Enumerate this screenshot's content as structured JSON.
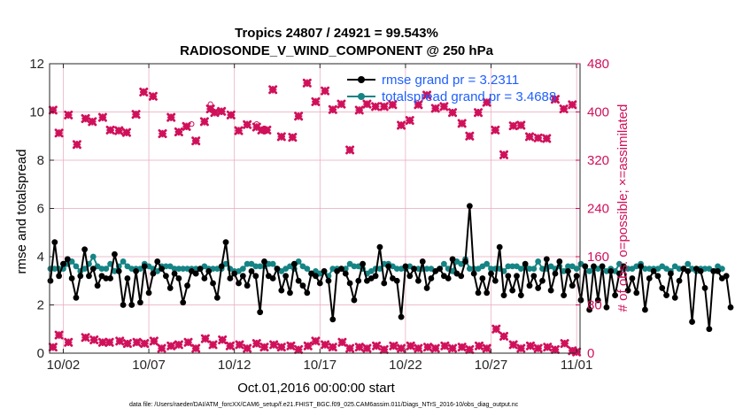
{
  "chart_data": {
    "type": "line",
    "title": "Tropics 24807 / 24921 = 99.543%",
    "subtitle": "RADIOSONDE_V_WIND_COMPONENT @ 250 hPa",
    "xlabel": "Oct.01,2016 00:00:00 start",
    "ylabel": "rmse and totalspread",
    "y2label": "# of obs: o=possible; ×=assimilated",
    "footer": "data file: /Users/raeder/DAI/ATM_forcXX/CAM6_setup/f.e21.FHIST_BGC.f09_025.CAM6assim.011/Diags_NTrS_2016-10/obs_diag_output.nc",
    "xlim": [
      0.2,
      31.2
    ],
    "ylim": [
      0,
      12
    ],
    "y2lim": [
      0,
      480
    ],
    "x_ticks": [
      {
        "v": 1,
        "label": "10/02"
      },
      {
        "v": 6,
        "label": "10/07"
      },
      {
        "v": 11,
        "label": "10/12"
      },
      {
        "v": 16,
        "label": "10/17"
      },
      {
        "v": 21,
        "label": "10/22"
      },
      {
        "v": 26,
        "label": "10/27"
      },
      {
        "v": 31,
        "label": "11/01"
      }
    ],
    "y_ticks": [
      0,
      2,
      4,
      6,
      8,
      10,
      12
    ],
    "y2_ticks": [
      0,
      80,
      160,
      240,
      320,
      400,
      480
    ],
    "legend": [
      {
        "label": "rmse grand pr = 3.2311",
        "color": "#000000"
      },
      {
        "label": "totalspread grand pr = 3.4688",
        "color": "#158484"
      }
    ],
    "colors": {
      "rmse": "#000000",
      "spread": "#158484",
      "obs": "#d0105a",
      "grid": "#e6a8bc",
      "legend_text": "#1f5fff"
    },
    "time_step": 0.25,
    "series": [
      {
        "name": "rmse",
        "axis": "left",
        "x0": 0.25,
        "values": [
          3.0,
          4.6,
          3.2,
          3.7,
          3.9,
          3.1,
          2.3,
          3.2,
          4.3,
          3.2,
          3.5,
          2.8,
          3.2,
          3.1,
          3.1,
          4.1,
          3.4,
          2.0,
          3.1,
          2.0,
          3.4,
          2.1,
          3.6,
          2.5,
          3.3,
          3.8,
          3.5,
          3.2,
          2.7,
          3.3,
          3.1,
          2.1,
          2.8,
          3.4,
          3.3,
          3.5,
          3.1,
          3.4,
          2.9,
          2.3,
          3.6,
          4.6,
          3.1,
          3.3,
          2.9,
          3.2,
          2.8,
          3.4,
          3.2,
          1.7,
          3.8,
          3.2,
          3.1,
          3.5,
          2.6,
          3.2,
          2.5,
          3.7,
          3.0,
          2.8,
          2.5,
          3.3,
          3.2,
          2.9,
          3.4,
          3.0,
          1.4,
          3.4,
          3.5,
          3.3,
          2.9,
          2.2,
          3.0,
          3.7,
          3.0,
          3.1,
          3.2,
          4.4,
          2.9,
          3.6,
          3.1,
          3.0,
          1.5,
          3.6,
          3.2,
          3.5,
          3.0,
          3.8,
          2.7,
          3.1,
          3.4,
          3.5,
          3.2,
          3.1,
          3.9,
          3.3,
          3.2,
          3.8,
          6.1,
          3.3,
          2.5,
          3.1,
          2.5,
          3.3,
          3.0,
          4.4,
          2.4,
          3.2,
          2.6,
          3.2,
          2.4,
          3.7,
          2.8,
          3.2,
          2.7,
          3.0,
          3.9,
          2.6,
          3.3,
          3.8,
          2.4,
          3.4,
          2.8,
          3.2,
          2.2,
          3.6,
          1.8,
          3.6,
          2.2,
          3.6,
          1.9,
          3.4,
          2.4,
          3.3,
          3.6,
          2.6,
          3.1,
          2.5,
          3.6,
          1.8,
          3.1,
          3.4,
          3.2,
          2.7,
          2.4,
          3.3,
          2.3,
          3.0,
          3.5,
          3.4,
          1.3,
          3.5,
          3.4,
          2.7,
          1.0,
          3.4,
          3.4,
          3.1,
          3.2,
          1.9
        ]
      },
      {
        "name": "totalspread",
        "axis": "left",
        "x0": 0.25,
        "values": [
          3.5,
          3.5,
          3.5,
          3.5,
          3.7,
          3.8,
          3.6,
          3.4,
          3.5,
          3.7,
          4.0,
          3.6,
          3.5,
          3.5,
          3.7,
          3.4,
          3.6,
          3.8,
          3.6,
          3.5,
          3.5,
          3.5,
          3.7,
          3.6,
          3.5,
          3.4,
          3.6,
          3.6,
          3.6,
          3.5,
          3.5,
          3.5,
          3.5,
          3.5,
          3.5,
          3.5,
          3.6,
          3.5,
          3.5,
          3.5,
          3.5,
          3.7,
          3.5,
          3.4,
          3.4,
          3.5,
          3.7,
          3.7,
          3.6,
          3.6,
          3.6,
          3.7,
          3.7,
          3.5,
          3.4,
          3.5,
          3.6,
          3.5,
          3.8,
          3.6,
          3.5,
          3.3,
          3.4,
          3.3,
          3.4,
          3.2,
          3.5,
          3.5,
          3.5,
          3.5,
          3.7,
          3.6,
          3.6,
          3.5,
          3.3,
          3.4,
          3.5,
          3.5,
          3.7,
          3.7,
          3.6,
          3.5,
          3.5,
          3.5,
          3.6,
          3.5,
          3.5,
          3.5,
          3.5,
          3.5,
          3.4,
          3.5,
          3.7,
          3.5,
          3.4,
          3.8,
          3.7,
          3.9,
          3.5,
          3.5,
          3.5,
          3.6,
          3.7,
          3.5,
          3.5,
          3.5,
          3.4,
          3.6,
          3.6,
          3.6,
          3.5,
          3.6,
          3.5,
          3.5,
          3.8,
          3.5,
          3.5,
          3.6,
          3.5,
          3.6,
          3.4,
          3.6,
          3.6,
          3.5,
          3.7,
          3.6,
          3.4,
          3.5,
          3.5,
          3.6,
          3.4,
          3.5,
          3.4,
          3.7,
          3.5,
          3.5,
          3.5,
          3.6,
          3.7,
          3.5,
          3.5,
          3.5,
          3.5,
          3.6,
          3.5,
          3.4,
          3.6,
          3.5,
          3.5,
          3.7,
          3.5,
          3.4,
          3.5,
          3.5,
          3.5,
          3.4,
          3.6,
          3.5
        ]
      },
      {
        "name": "obs possible (o)",
        "axis": "right",
        "marker": "o",
        "points": [
          [
            0.4,
            403
          ],
          [
            0.75,
            365
          ],
          [
            1.3,
            395
          ],
          [
            1.8,
            346
          ],
          [
            2.3,
            389
          ],
          [
            2.7,
            384
          ],
          [
            3.3,
            391
          ],
          [
            3.75,
            370
          ],
          [
            4.25,
            369
          ],
          [
            4.7,
            366
          ],
          [
            5.25,
            396
          ],
          [
            5.7,
            433
          ],
          [
            6.25,
            426
          ],
          [
            6.8,
            364
          ],
          [
            7.3,
            391
          ],
          [
            7.75,
            367
          ],
          [
            8.2,
            376
          ],
          [
            8.5,
            380
          ],
          [
            8.75,
            352
          ],
          [
            9.25,
            384
          ],
          [
            9.6,
            413
          ],
          [
            9.85,
            399
          ],
          [
            10.25,
            401
          ],
          [
            10.8,
            395
          ],
          [
            11.25,
            369
          ],
          [
            11.75,
            379
          ],
          [
            12.3,
            380
          ],
          [
            12.6,
            370
          ],
          [
            12.9,
            370
          ],
          [
            13.25,
            437
          ],
          [
            13.75,
            359
          ],
          [
            14.4,
            358
          ],
          [
            14.75,
            393
          ],
          [
            15.25,
            448
          ],
          [
            15.75,
            417
          ],
          [
            16.3,
            435
          ],
          [
            16.75,
            404
          ],
          [
            17.25,
            413
          ],
          [
            17.75,
            337
          ],
          [
            18.3,
            403
          ],
          [
            18.75,
            413
          ],
          [
            19.25,
            409
          ],
          [
            19.75,
            409
          ],
          [
            20.25,
            412
          ],
          [
            20.75,
            378
          ],
          [
            21.25,
            386
          ],
          [
            21.75,
            412
          ],
          [
            22.25,
            428
          ],
          [
            22.75,
            406
          ],
          [
            23.25,
            409
          ],
          [
            23.75,
            399
          ],
          [
            24.3,
            381
          ],
          [
            24.75,
            360
          ],
          [
            25.25,
            399
          ],
          [
            25.75,
            416
          ],
          [
            26.25,
            370
          ],
          [
            26.75,
            329
          ],
          [
            27.3,
            377
          ],
          [
            27.75,
            378
          ],
          [
            28.25,
            359
          ],
          [
            28.75,
            357
          ],
          [
            29.25,
            356
          ],
          [
            29.75,
            421
          ],
          [
            30.25,
            405
          ],
          [
            30.75,
            412
          ]
        ]
      },
      {
        "name": "obs assimilated (x)",
        "axis": "right",
        "marker": "x",
        "points": [
          [
            0.4,
            403
          ],
          [
            0.75,
            365
          ],
          [
            1.3,
            395
          ],
          [
            1.8,
            346
          ],
          [
            2.3,
            389
          ],
          [
            2.7,
            384
          ],
          [
            3.3,
            391
          ],
          [
            3.75,
            370
          ],
          [
            4.25,
            369
          ],
          [
            4.7,
            366
          ],
          [
            5.25,
            396
          ],
          [
            5.7,
            433
          ],
          [
            6.25,
            426
          ],
          [
            6.8,
            364
          ],
          [
            7.3,
            391
          ],
          [
            7.75,
            367
          ],
          [
            8.2,
            376
          ],
          [
            8.75,
            352
          ],
          [
            9.25,
            384
          ],
          [
            9.6,
            405
          ],
          [
            9.85,
            399
          ],
          [
            10.25,
            401
          ],
          [
            10.8,
            395
          ],
          [
            11.25,
            369
          ],
          [
            11.75,
            379
          ],
          [
            12.3,
            375
          ],
          [
            12.6,
            370
          ],
          [
            12.9,
            370
          ],
          [
            13.25,
            437
          ],
          [
            13.75,
            359
          ],
          [
            14.4,
            358
          ],
          [
            14.75,
            393
          ],
          [
            15.25,
            448
          ],
          [
            15.75,
            417
          ],
          [
            16.3,
            435
          ],
          [
            16.75,
            404
          ],
          [
            17.25,
            413
          ],
          [
            17.75,
            337
          ],
          [
            18.3,
            403
          ],
          [
            18.75,
            413
          ],
          [
            19.25,
            409
          ],
          [
            19.75,
            409
          ],
          [
            20.25,
            412
          ],
          [
            20.75,
            378
          ],
          [
            21.25,
            386
          ],
          [
            21.75,
            412
          ],
          [
            22.25,
            428
          ],
          [
            22.75,
            406
          ],
          [
            23.25,
            409
          ],
          [
            23.75,
            399
          ],
          [
            24.3,
            381
          ],
          [
            24.75,
            360
          ],
          [
            25.25,
            399
          ],
          [
            25.75,
            416
          ],
          [
            26.25,
            370
          ],
          [
            26.75,
            329
          ],
          [
            27.3,
            377
          ],
          [
            27.75,
            378
          ],
          [
            28.25,
            359
          ],
          [
            28.75,
            357
          ],
          [
            29.25,
            356
          ],
          [
            29.75,
            421
          ],
          [
            30.25,
            405
          ],
          [
            30.75,
            412
          ],
          [
            0.4,
            10
          ],
          [
            0.75,
            30
          ],
          [
            1.3,
            18
          ],
          [
            2.3,
            26
          ],
          [
            2.8,
            22
          ],
          [
            3.3,
            18
          ],
          [
            3.7,
            18
          ],
          [
            4.3,
            20
          ],
          [
            4.75,
            16
          ],
          [
            5.3,
            18
          ],
          [
            5.75,
            16
          ],
          [
            6.3,
            20
          ],
          [
            6.75,
            8
          ],
          [
            7.3,
            12
          ],
          [
            7.75,
            14
          ],
          [
            8.3,
            18
          ],
          [
            8.75,
            8
          ],
          [
            9.3,
            24
          ],
          [
            9.75,
            14
          ],
          [
            10.3,
            22
          ],
          [
            10.75,
            12
          ],
          [
            11.3,
            14
          ],
          [
            11.75,
            8
          ],
          [
            12.3,
            16
          ],
          [
            12.75,
            10
          ],
          [
            13.3,
            14
          ],
          [
            13.75,
            10
          ],
          [
            14.3,
            12
          ],
          [
            14.75,
            6
          ],
          [
            15.3,
            12
          ],
          [
            15.75,
            20
          ],
          [
            16.3,
            14
          ],
          [
            16.75,
            10
          ],
          [
            17.3,
            18
          ],
          [
            17.75,
            8
          ],
          [
            18.3,
            10
          ],
          [
            18.75,
            8
          ],
          [
            19.3,
            12
          ],
          [
            19.75,
            6
          ],
          [
            20.3,
            12
          ],
          [
            20.75,
            8
          ],
          [
            21.3,
            12
          ],
          [
            21.75,
            8
          ],
          [
            22.3,
            10
          ],
          [
            22.75,
            8
          ],
          [
            23.3,
            12
          ],
          [
            23.75,
            8
          ],
          [
            24.3,
            10
          ],
          [
            24.75,
            6
          ],
          [
            25.3,
            12
          ],
          [
            25.75,
            8
          ],
          [
            26.3,
            40
          ],
          [
            26.75,
            28
          ],
          [
            27.3,
            14
          ],
          [
            27.75,
            8
          ],
          [
            28.3,
            12
          ],
          [
            28.75,
            8
          ],
          [
            29.3,
            10
          ],
          [
            29.75,
            6
          ],
          [
            30.3,
            16
          ],
          [
            30.75,
            4
          ],
          [
            31.0,
            2
          ]
        ]
      }
    ]
  }
}
